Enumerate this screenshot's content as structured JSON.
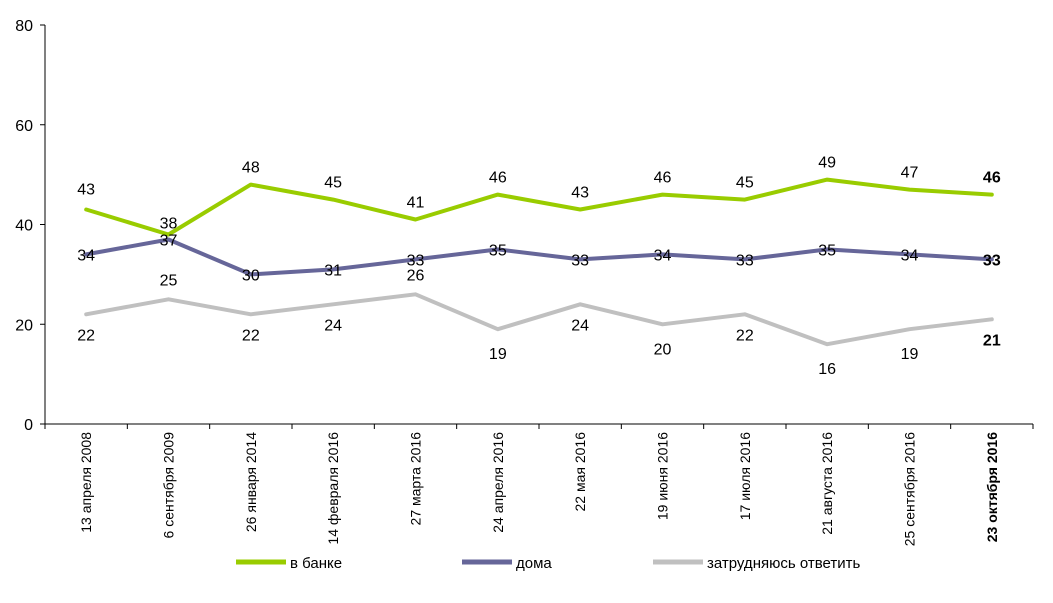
{
  "chart_data": {
    "type": "line",
    "categories": [
      "13 апреля 2008",
      "6 сентября 2009",
      "26 января 2014",
      "14 февраля 2016",
      "27 марта 2016",
      "24 апреля 2016",
      "22 мая 2016",
      "19 июня 2016",
      "17 июля 2016",
      "21 августа 2016",
      "25 сентября 2016",
      "23 октября 2016"
    ],
    "series": [
      {
        "name": "в банке",
        "color": "#99cc00",
        "values": [
          43,
          38,
          48,
          45,
          41,
          46,
          43,
          46,
          45,
          49,
          47,
          46
        ]
      },
      {
        "name": "дома",
        "color": "#666699",
        "values": [
          34,
          37,
          30,
          31,
          33,
          35,
          33,
          34,
          33,
          35,
          34,
          33
        ]
      },
      {
        "name": "затрудняюсь ответить",
        "color": "#c0c0c0",
        "values": [
          22,
          25,
          22,
          24,
          26,
          19,
          24,
          20,
          22,
          16,
          19,
          21
        ]
      }
    ],
    "yticks": [
      "0",
      "20",
      "40",
      "60",
      "80"
    ],
    "ylim": [
      0,
      80
    ],
    "legend_position": "bottom",
    "grid": false
  }
}
